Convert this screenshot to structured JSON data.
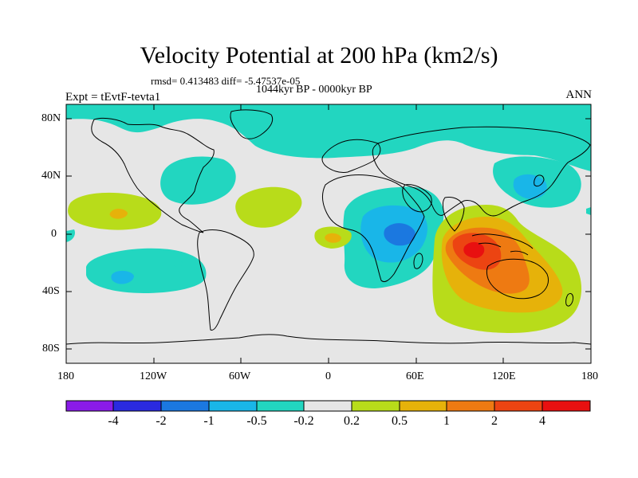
{
  "title": "Velocity Potential at 200 hPa (km2/s)",
  "stats": "rmsd= 0.413483 diff= -5.47537e-05",
  "period": "1044kyr BP - 0000kyr BP",
  "experiment": "Expt = tEvtF-tevta1",
  "season": "ANN",
  "lat_labels": [
    "80N",
    "40N",
    "0",
    "40S",
    "80S"
  ],
  "lon_labels": [
    "180",
    "120W",
    "60W",
    "0",
    "60E",
    "120E",
    "180"
  ],
  "colorbar": {
    "labels": [
      "-4",
      "-2",
      "-1",
      "-0.5",
      "-0.2",
      "0.2",
      "0.5",
      "1",
      "2",
      "4"
    ],
    "colors": [
      "#8a1be8",
      "#2a2ae0",
      "#1b78e0",
      "#19b6e8",
      "#22d6c0",
      "#e6e6e6",
      "#b8dc1a",
      "#e6b20a",
      "#ee7a12",
      "#ec4412",
      "#e81010"
    ]
  },
  "map_palette": {
    "background": "#e6e6e6",
    "weak_negative": "#22d6c0",
    "moderate_negative": "#19b6e8",
    "strong_negative": "#1b78e0",
    "weak_positive": "#b8dc1a",
    "moderate_positive": "#e6b20a",
    "strong_positive": "#ee7a12",
    "stronger_positive": "#ec4412"
  }
}
